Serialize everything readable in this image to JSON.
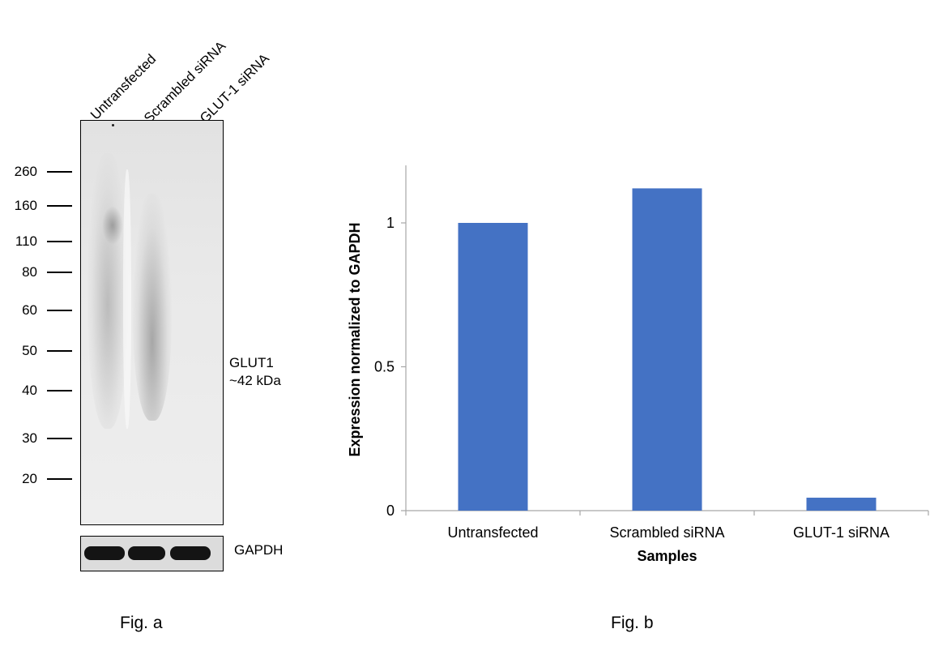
{
  "fig_a": {
    "lane_labels": [
      "Untransfected",
      "Scrambled siRNA",
      "GLUT-1 siRNA"
    ],
    "mw_markers": [
      "260",
      "160",
      "110",
      "80",
      "60",
      "50",
      "40",
      "30",
      "20"
    ],
    "band_label_line1": "GLUT1",
    "band_label_line2": "~42 kDa",
    "loading_control_label": "GAPDH",
    "caption": "Fig. a"
  },
  "fig_b": {
    "caption": "Fig. b",
    "bar_color": "#4472c4"
  },
  "chart_data": {
    "type": "bar",
    "categories": [
      "Untransfected",
      "Scrambled siRNA",
      "GLUT-1 siRNA"
    ],
    "values": [
      1.0,
      1.12,
      0.045
    ],
    "title": "",
    "xlabel": "Samples",
    "ylabel": "Expression normalized to GAPDH",
    "ylim": [
      0,
      1.2
    ],
    "yticks": [
      "0",
      "0.5",
      "1"
    ],
    "grid": false,
    "legend": "none"
  }
}
